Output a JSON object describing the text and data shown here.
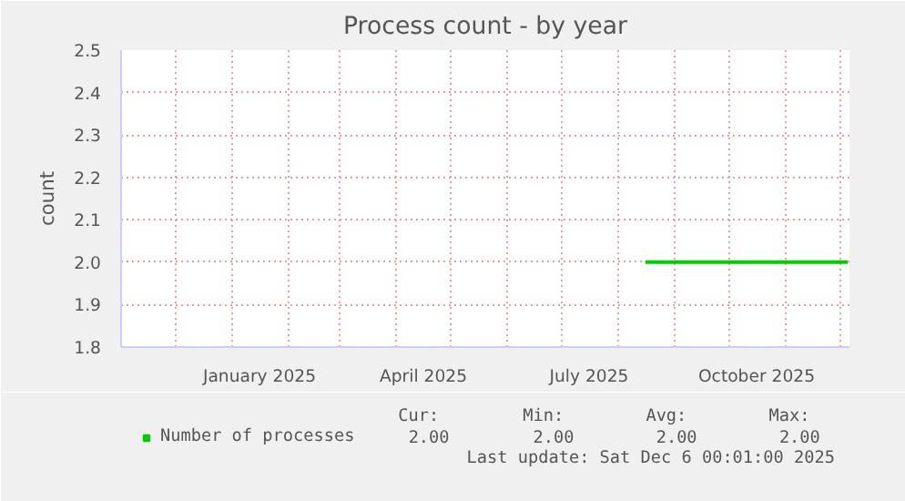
{
  "chart_data": {
    "type": "line",
    "title": "Process count - by year",
    "ylabel": "count",
    "x": [
      "2025-08-16",
      "2025-12-05"
    ],
    "series": [
      {
        "name": "Number of processes",
        "color": "#00cc00",
        "values": [
          2.0,
          2.0
        ]
      }
    ],
    "xlim": [
      "2024-11-01",
      "2025-12-06"
    ],
    "xticks": [
      {
        "value": "2024-12-01",
        "label": null
      },
      {
        "value": "2025-01-01",
        "label": null
      },
      {
        "value": "2025-01-16",
        "label": "January 2025"
      },
      {
        "value": "2025-02-01",
        "label": null
      },
      {
        "value": "2025-03-01",
        "label": null
      },
      {
        "value": "2025-04-01",
        "label": null
      },
      {
        "value": "2025-04-16",
        "label": "April 2025"
      },
      {
        "value": "2025-05-01",
        "label": null
      },
      {
        "value": "2025-06-01",
        "label": null
      },
      {
        "value": "2025-07-01",
        "label": null
      },
      {
        "value": "2025-07-16",
        "label": "July 2025"
      },
      {
        "value": "2025-08-01",
        "label": null
      },
      {
        "value": "2025-09-01",
        "label": null
      },
      {
        "value": "2025-10-01",
        "label": null
      },
      {
        "value": "2025-10-16",
        "label": "October 2025"
      },
      {
        "value": "2025-11-01",
        "label": null
      },
      {
        "value": "2025-12-01",
        "label": null
      }
    ],
    "ylim": [
      1.8,
      2.5
    ],
    "yticks": [
      {
        "value": 1.8,
        "label": "1.8"
      },
      {
        "value": 1.9,
        "label": "1.9"
      },
      {
        "value": 2.0,
        "label": "2.0"
      },
      {
        "value": 2.1,
        "label": "2.1"
      },
      {
        "value": 2.2,
        "label": "2.2"
      },
      {
        "value": 2.3,
        "label": "2.3"
      },
      {
        "value": 2.4,
        "label": "2.4"
      },
      {
        "value": 2.5,
        "label": "2.5"
      }
    ],
    "grid": true,
    "legend": "bottom left",
    "annotations": [
      "Cur:",
      "Min:",
      "Avg:",
      "Max:",
      "2.00",
      "2.00",
      "2.00",
      "2.00",
      "Last update: Sat Dec  6 00:01:00 2025"
    ]
  }
}
